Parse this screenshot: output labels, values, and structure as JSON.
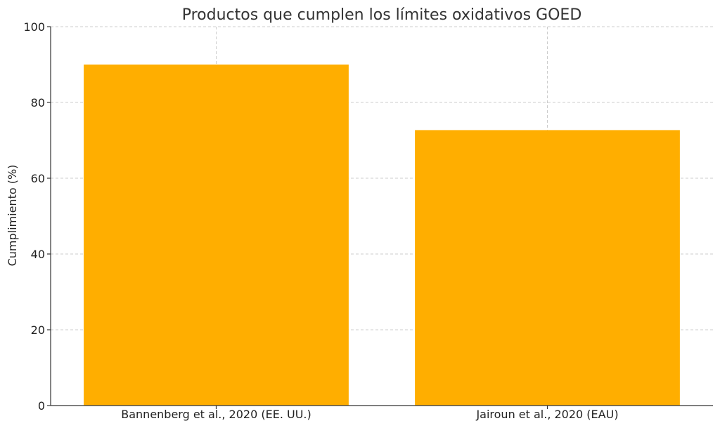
{
  "chart_data": {
    "type": "bar",
    "title": "Productos que cumplen los límites oxidativos GOED",
    "xlabel": "",
    "ylabel": "Cumplimiento (%)",
    "categories": [
      "Bannenberg et al., 2020 (EE. UU.)",
      "Jairoun et al., 2020 (EAU)"
    ],
    "values": [
      90,
      72.7
    ],
    "ylim": [
      0,
      100
    ],
    "yticks": [
      "0",
      "20",
      "40",
      "60",
      "80",
      "100"
    ],
    "grid": true,
    "bar_color": "#FFAE00"
  }
}
